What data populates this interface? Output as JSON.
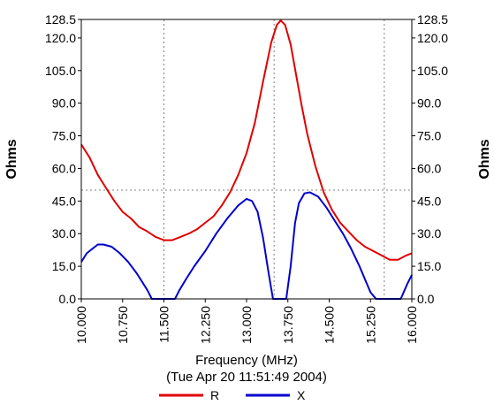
{
  "chart_data": {
    "type": "line",
    "xlabel": "Frequency (MHz)",
    "subtitle": "(Tue Apr 20 11:51:49 2004)",
    "ylabel_left": "Ohms",
    "ylabel_right": "Ohms",
    "xlim": [
      10.0,
      16.0
    ],
    "ylim": [
      0,
      128.5
    ],
    "x_ticks": [
      "10.000",
      "10.750",
      "11.500",
      "12.250",
      "13.000",
      "13.750",
      "14.500",
      "15.250",
      "16.000"
    ],
    "x_tick_values": [
      10.0,
      10.75,
      11.5,
      12.25,
      13.0,
      13.75,
      14.5,
      15.25,
      16.0
    ],
    "y_ticks": [
      "0.0",
      "15.0",
      "30.0",
      "45.0",
      "60.0",
      "75.0",
      "90.0",
      "105.0",
      "120.0",
      "128.5"
    ],
    "y_tick_values": [
      0,
      15,
      30,
      45,
      60,
      75,
      90,
      105,
      120,
      128.5
    ],
    "grid": {
      "x_values": [
        11.5,
        13.5,
        15.5
      ],
      "y_values": [
        50
      ]
    },
    "legend_position": "bottom-center",
    "series": [
      {
        "name": "R",
        "color": "#e00000",
        "x": [
          10.0,
          10.15,
          10.3,
          10.45,
          10.6,
          10.75,
          10.9,
          11.05,
          11.2,
          11.35,
          11.5,
          11.65,
          11.8,
          11.95,
          12.1,
          12.25,
          12.4,
          12.55,
          12.7,
          12.85,
          13.0,
          13.15,
          13.3,
          13.45,
          13.55,
          13.62,
          13.7,
          13.8,
          13.9,
          14.0,
          14.1,
          14.25,
          14.4,
          14.55,
          14.7,
          14.85,
          15.0,
          15.15,
          15.3,
          15.45,
          15.6,
          15.75,
          15.9,
          16.0
        ],
        "y": [
          71,
          65,
          57,
          51,
          45,
          40,
          37,
          33,
          31,
          28.5,
          27,
          27,
          28.5,
          30,
          32,
          35,
          38,
          43,
          49,
          57,
          67,
          81,
          100,
          118,
          126,
          128,
          126,
          117,
          103,
          89,
          76,
          61,
          49,
          41,
          35,
          31,
          27,
          24,
          22,
          20,
          18,
          18,
          20,
          21
        ]
      },
      {
        "name": "X",
        "color": "#0000cc",
        "x": [
          10.0,
          10.1,
          10.2,
          10.3,
          10.4,
          10.55,
          10.7,
          10.85,
          11.0,
          11.1,
          11.2,
          11.28,
          11.4,
          11.55,
          11.7,
          11.78,
          11.9,
          12.05,
          12.25,
          12.45,
          12.65,
          12.85,
          13.0,
          13.1,
          13.2,
          13.3,
          13.4,
          13.48,
          13.6,
          13.72,
          13.8,
          13.88,
          13.95,
          14.05,
          14.15,
          14.3,
          14.45,
          14.6,
          14.75,
          14.9,
          15.05,
          15.15,
          15.25,
          15.35,
          15.5,
          15.65,
          15.8,
          15.92,
          16.0
        ],
        "y": [
          17,
          21,
          23,
          25,
          25,
          24,
          21,
          17,
          12,
          8,
          4,
          0,
          0,
          0,
          0,
          4,
          9,
          15,
          22,
          30,
          37,
          43,
          46,
          45,
          40,
          28,
          12,
          0,
          0,
          0,
          15,
          35,
          44,
          48.5,
          49,
          47,
          42,
          36,
          30,
          23,
          15,
          9,
          3,
          0,
          0,
          0,
          0,
          7,
          11
        ]
      }
    ]
  }
}
